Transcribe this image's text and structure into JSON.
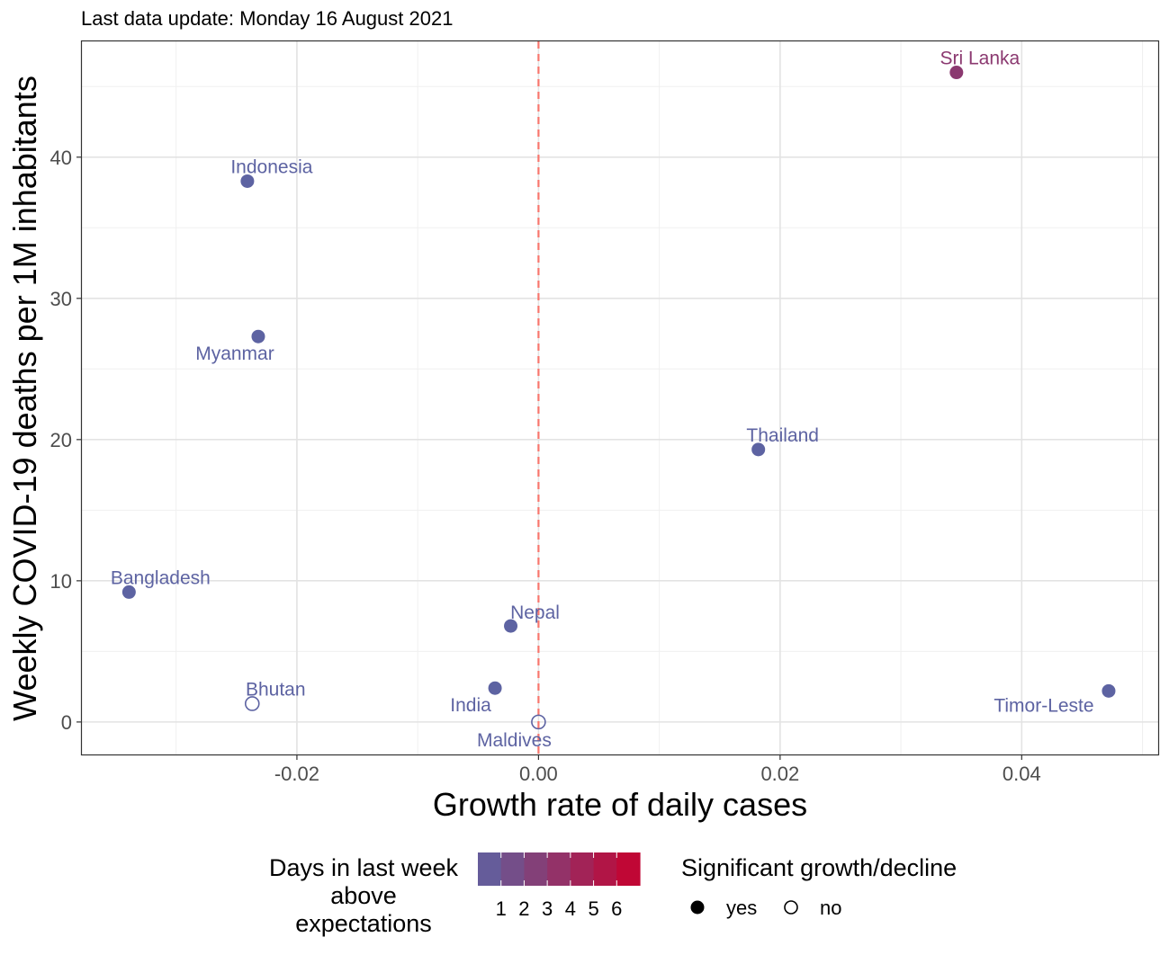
{
  "subtitle": "Last data update: Monday 16 August 2021",
  "colors": {
    "low": "#5D63A2",
    "high": "#C8002D",
    "reference_line": "#F8766D",
    "grid_major": "#E3E3E3",
    "grid_minor": "#F0F0F0",
    "panel_border": "#333333"
  },
  "legend": {
    "color_title_lines": [
      "Days in last week",
      "above",
      "expectations"
    ],
    "color_ticks": [
      "1",
      "2",
      "3",
      "4",
      "5",
      "6"
    ],
    "shape_title": "Significant growth/decline",
    "shape_items": [
      {
        "label": "yes",
        "marker": "filled-circle"
      },
      {
        "label": "no",
        "marker": "open-circle"
      }
    ]
  },
  "chart_data": {
    "type": "scatter",
    "xlabel": "Growth rate of daily cases",
    "ylabel": "Weekly COVID-19 deaths per 1M inhabitants",
    "xlim": [
      -0.0378,
      0.0513
    ],
    "ylim": [
      -2.3,
      48.2
    ],
    "x_ticks": [
      -0.02,
      0.0,
      0.02,
      0.04
    ],
    "x_tick_labels": [
      "-0.02",
      "0.00",
      "0.02",
      "0.04"
    ],
    "y_ticks": [
      0,
      10,
      20,
      30,
      40
    ],
    "y_tick_labels": [
      "0",
      "10",
      "20",
      "30",
      "40"
    ],
    "x_minor_ticks": [
      -0.03,
      -0.01,
      0.01,
      0.03,
      0.05
    ],
    "y_minor_ticks": [
      5,
      15,
      25,
      35,
      45
    ],
    "grid": true,
    "reference_line": {
      "x": 0.0,
      "style": "dashed"
    },
    "legend_position": "bottom",
    "color_scale": {
      "min": 0,
      "max": 7
    },
    "points": [
      {
        "label": "Sri Lanka",
        "x": 0.0346,
        "y": 46.0,
        "days_above": 3,
        "significant": true
      },
      {
        "label": "Indonesia",
        "x": -0.0241,
        "y": 38.3,
        "days_above": 0,
        "significant": true
      },
      {
        "label": "Myanmar",
        "x": -0.0232,
        "y": 27.3,
        "days_above": 0,
        "significant": true
      },
      {
        "label": "Thailand",
        "x": 0.0182,
        "y": 19.3,
        "days_above": 0,
        "significant": true
      },
      {
        "label": "Bangladesh",
        "x": -0.0339,
        "y": 9.2,
        "days_above": 0,
        "significant": true
      },
      {
        "label": "Nepal",
        "x": -0.0023,
        "y": 6.8,
        "days_above": 0,
        "significant": true
      },
      {
        "label": "Bhutan",
        "x": -0.0237,
        "y": 1.3,
        "days_above": 0,
        "significant": false
      },
      {
        "label": "India",
        "x": -0.0036,
        "y": 2.4,
        "days_above": 0,
        "significant": true
      },
      {
        "label": "Maldives",
        "x": 0.0,
        "y": 0.0,
        "days_above": 0,
        "significant": false
      },
      {
        "label": "Timor-Leste",
        "x": 0.0472,
        "y": 2.2,
        "days_above": 0,
        "significant": true
      }
    ]
  }
}
